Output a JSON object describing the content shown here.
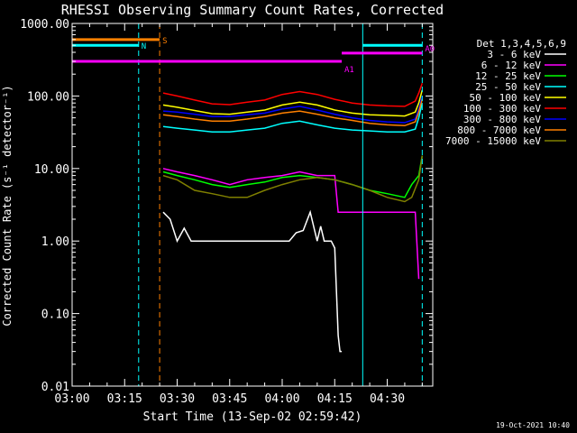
{
  "chart_data": {
    "type": "line",
    "title": "RHESSI Observing Summary Count Rates, Corrected",
    "xlabel": "Start Time (13-Sep-02 02:59:42)",
    "ylabel": "Corrected Count Rate (s⁻¹ detector⁻¹)",
    "y_scale": "log",
    "ylim": [
      0.01,
      1000
    ],
    "xlim_minutes": [
      0,
      103
    ],
    "x_tick_labels": [
      "03:00",
      "03:15",
      "03:30",
      "03:45",
      "04:00",
      "04:15",
      "04:30"
    ],
    "y_tick_labels": [
      "1000.00",
      "100.00",
      "10.00",
      "1.00",
      "0.10",
      "0.01"
    ],
    "stamp": "19-Oct-2021 10:40",
    "legend": {
      "position": "right",
      "header": "Det 1,3,4,5,6,9",
      "entries": [
        {
          "label": "3 - 6 keV",
          "color": "#ffffff"
        },
        {
          "label": "6 - 12 keV",
          "color": "#ff00ff"
        },
        {
          "label": "12 - 25 keV",
          "color": "#00ff00"
        },
        {
          "label": "25 - 50 keV",
          "color": "#00ffff"
        },
        {
          "label": "50 - 100 keV",
          "color": "#ffff00"
        },
        {
          "label": "100 - 300 keV",
          "color": "#ff0000"
        },
        {
          "label": "300 - 800 keV",
          "color": "#0000ff"
        },
        {
          "label": "800 - 7000 keV",
          "color": "#ff8000"
        },
        {
          "label": "7000 - 15000 keV",
          "color": "#808000"
        }
      ]
    },
    "series": [
      {
        "name": "3 - 6 keV",
        "color": "#ffffff",
        "x": [
          26,
          28,
          30,
          32,
          34,
          36,
          40,
          45,
          50,
          55,
          60,
          62,
          64,
          66,
          68,
          70,
          71,
          72,
          73,
          74,
          75,
          76,
          76.5,
          77
        ],
        "y": [
          2.5,
          2.0,
          1.0,
          1.5,
          1.0,
          1.0,
          1.0,
          1.0,
          1.0,
          1.0,
          1.0,
          1.0,
          1.3,
          1.4,
          2.5,
          1.0,
          1.6,
          1.0,
          1.0,
          1.0,
          0.8,
          0.05,
          0.03,
          0.03
        ]
      },
      {
        "name": "6 - 12 keV",
        "color": "#ff00ff",
        "x": [
          26,
          30,
          35,
          40,
          45,
          50,
          55,
          60,
          65,
          70,
          74,
          75,
          76,
          77,
          78,
          79,
          80,
          81,
          98,
          99
        ],
        "y": [
          10,
          9,
          8,
          7,
          6,
          7,
          7.5,
          8,
          9,
          8,
          8,
          8,
          2.5,
          2.5,
          2.5,
          2.5,
          2.5,
          2.5,
          2.5,
          0.3
        ]
      },
      {
        "name": "12 - 25 keV",
        "color": "#00ff00",
        "x": [
          26,
          30,
          35,
          40,
          45,
          50,
          55,
          60,
          65,
          70,
          75,
          80,
          85,
          90,
          95,
          97,
          99,
          100
        ],
        "y": [
          9,
          8,
          7,
          6,
          5.5,
          6,
          6.5,
          7.5,
          8,
          7.5,
          7,
          6,
          5,
          4.5,
          4,
          6,
          8,
          15
        ]
      },
      {
        "name": "25 - 50 keV",
        "color": "#00ffff",
        "x": [
          26,
          30,
          35,
          40,
          45,
          50,
          55,
          60,
          65,
          70,
          75,
          80,
          85,
          90,
          95,
          98,
          99,
          100
        ],
        "y": [
          38,
          36,
          34,
          32,
          32,
          34,
          36,
          42,
          45,
          40,
          36,
          34,
          33,
          32,
          32,
          35,
          50,
          80
        ]
      },
      {
        "name": "50 - 100 keV",
        "color": "#ffff00",
        "x": [
          26,
          30,
          35,
          40,
          45,
          50,
          55,
          60,
          65,
          70,
          75,
          80,
          85,
          90,
          95,
          98,
          99,
          100
        ],
        "y": [
          75,
          70,
          63,
          57,
          56,
          60,
          64,
          75,
          82,
          75,
          64,
          58,
          55,
          54,
          53,
          60,
          80,
          120
        ]
      },
      {
        "name": "100 - 300 keV",
        "color": "#ff0000",
        "x": [
          26,
          30,
          35,
          40,
          45,
          50,
          55,
          60,
          65,
          70,
          75,
          80,
          85,
          90,
          95,
          98,
          99,
          100
        ],
        "y": [
          110,
          100,
          88,
          78,
          76,
          82,
          88,
          105,
          115,
          105,
          90,
          80,
          75,
          73,
          72,
          85,
          110,
          150
        ]
      },
      {
        "name": "300 - 800 keV",
        "color": "#0000ff",
        "x": [
          26,
          30,
          35,
          40,
          45,
          50,
          55,
          60,
          65,
          70,
          75,
          80,
          85,
          90,
          95,
          98,
          99,
          100
        ],
        "y": [
          62,
          60,
          56,
          52,
          52,
          55,
          58,
          66,
          72,
          64,
          56,
          50,
          46,
          44,
          43,
          48,
          65,
          100
        ]
      },
      {
        "name": "800 - 7000 keV",
        "color": "#ff8000",
        "x": [
          26,
          30,
          35,
          40,
          45,
          50,
          55,
          60,
          65,
          70,
          75,
          80,
          85,
          90,
          95,
          98,
          99,
          100
        ],
        "y": [
          55,
          52,
          48,
          45,
          45,
          48,
          52,
          58,
          62,
          56,
          50,
          46,
          42,
          40,
          39,
          44,
          60,
          90
        ]
      },
      {
        "name": "7000 - 15000 keV",
        "color": "#808000",
        "x": [
          26,
          30,
          35,
          40,
          45,
          50,
          55,
          60,
          65,
          70,
          75,
          80,
          85,
          90,
          95,
          97,
          99,
          100
        ],
        "y": [
          8,
          7,
          5,
          4.5,
          4,
          4,
          5,
          6,
          7,
          7.5,
          7,
          6,
          5,
          4,
          3.5,
          4,
          7,
          15
        ]
      }
    ],
    "flag_bars": [
      {
        "label": "S",
        "color": "#ff8000",
        "x0": 0,
        "x1": 25,
        "y": 600
      },
      {
        "label": "N",
        "color": "#00ffff",
        "x0": 0,
        "x1": 19,
        "y": 500
      },
      {
        "label": "",
        "color": "#00ffff",
        "x0": 83,
        "x1": 100,
        "y": 500
      },
      {
        "label": "A0",
        "color": "#ff00ff",
        "x0": 77,
        "x1": 100,
        "y": 390
      },
      {
        "label": "A1",
        "color": "#ff00ff",
        "x0": 0,
        "x1": 77,
        "y": 300
      }
    ],
    "vlines": [
      {
        "x": 0,
        "color": "#00ffff",
        "style": "solid"
      },
      {
        "x": 19,
        "color": "#00ffff",
        "style": "dashed"
      },
      {
        "x": 25,
        "color": "#ff8000",
        "style": "dashed"
      },
      {
        "x": 83,
        "color": "#00ffff",
        "style": "solid"
      },
      {
        "x": 100,
        "color": "#00ffff",
        "style": "dashed"
      }
    ]
  }
}
